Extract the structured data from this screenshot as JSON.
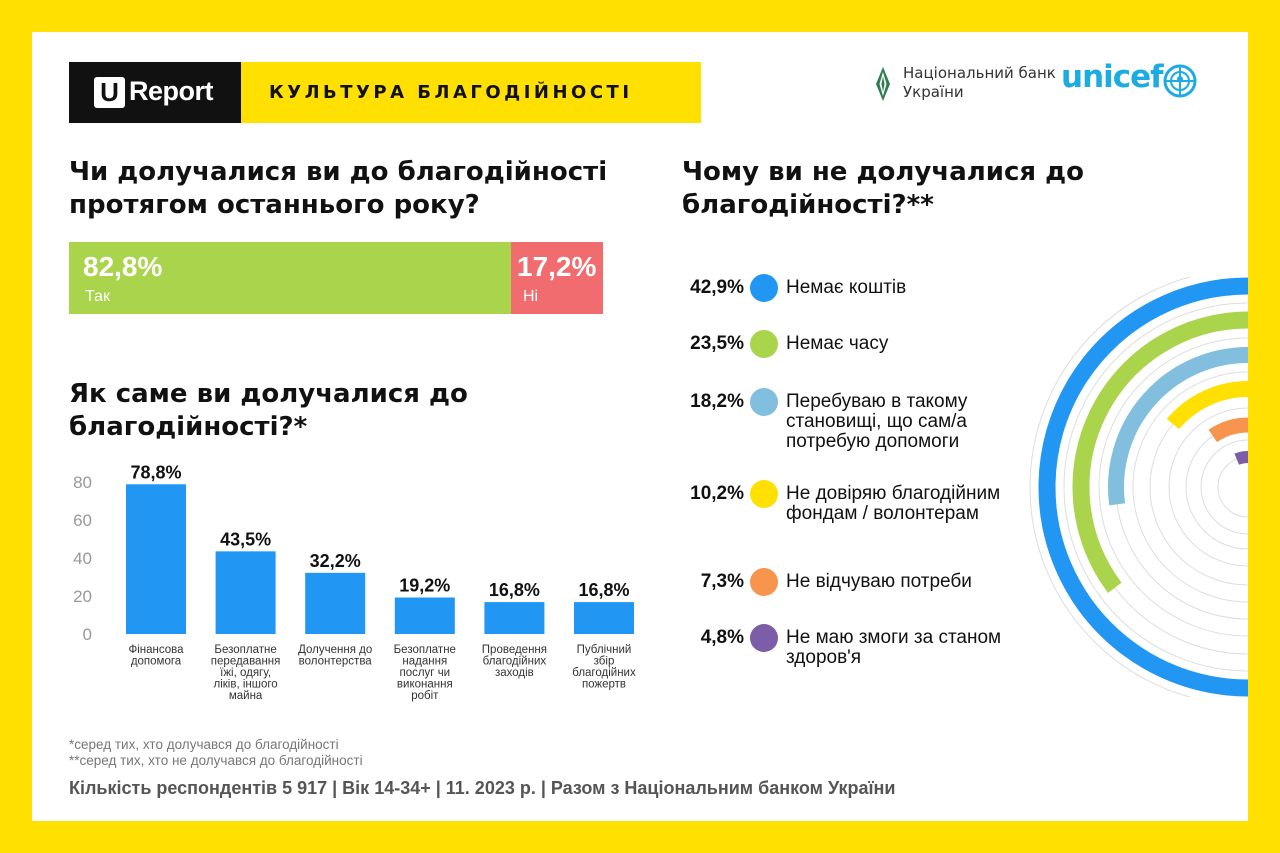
{
  "header": {
    "brand_letter": "U",
    "brand_text": "Report",
    "title": "КУЛЬТУРА БЛАГОДІЙНОСТІ",
    "partner_nbu": "Національний банк України",
    "partner_unicef": "unicef"
  },
  "colors": {
    "yellow": "#FFE000",
    "green": "#A9D44B",
    "red": "#F06C6E",
    "blue": "#2196F3",
    "light_blue": "#82BEDD",
    "orange": "#F7944D",
    "purple": "#7B5EA7"
  },
  "question1": {
    "title": "Чи долучалися ви до благодійності протягом останнього року?",
    "yes_value": "82,8%",
    "yes_label": "Так",
    "no_value": "17,2%",
    "no_label": "Ні"
  },
  "question2": {
    "title": "Як саме ви долучалися до благодійності?*"
  },
  "question3": {
    "title": "Чому ви не долучалися до благодійності?**"
  },
  "chart_data": [
    {
      "type": "bar",
      "title": "Чи долучалися ви до благодійності протягом останнього року?",
      "orientation": "horizontal-stacked",
      "categories": [
        "Так",
        "Ні"
      ],
      "values": [
        82.8,
        17.2
      ],
      "value_labels": [
        "82,8%",
        "17,2%"
      ]
    },
    {
      "type": "bar",
      "title": "Як саме ви долучалися до благодійності?*",
      "categories": [
        "Фінансова допомога",
        "Безоплатне передавання їжі, одягу, ліків, іншого майна",
        "Долучення до волонтерства",
        "Безоплатне надання послуг чи виконання робіт",
        "Проведення благодійних заходів",
        "Публічний збір благодійних пожертв"
      ],
      "category_lines": [
        [
          "Фінансова",
          "допомога"
        ],
        [
          "Безоплатне",
          "передавання",
          "їжі, одягу,",
          "ліків, іншого",
          "майна"
        ],
        [
          "Долучення до",
          "волонтерства"
        ],
        [
          "Безоплатне",
          "надання",
          "послуг чи",
          "виконання",
          "робіт"
        ],
        [
          "Проведення",
          "благодійних",
          "заходів"
        ],
        [
          "Публічний",
          "збір",
          "благодійних",
          "пожертв"
        ]
      ],
      "values": [
        78.8,
        43.5,
        32.2,
        19.2,
        16.8,
        16.8
      ],
      "value_labels": [
        "78,8%",
        "43,5%",
        "32,2%",
        "19,2%",
        "16,8%",
        "16,8%"
      ],
      "y_ticks": [
        0,
        20,
        40,
        60,
        80
      ],
      "ylim": [
        0,
        80
      ],
      "grid": false,
      "color": "#2196F3"
    },
    {
      "type": "bar",
      "subtype": "radial",
      "title": "Чому ви не долучалися до благодійності?**",
      "categories": [
        "Немає коштів",
        "Немає часу",
        "Перебуваю в такому становищі, що сам/а потребую допомоги",
        "Не довіряю благодійним фондам / волонтерам",
        "Не відчуваю потреби",
        "Не маю змоги за станом здоров'я"
      ],
      "values": [
        42.9,
        23.5,
        18.2,
        10.2,
        7.3,
        4.8
      ],
      "value_labels": [
        "42,9%",
        "23,5%",
        "18,2%",
        "10,2%",
        "7,3%",
        "4,8%"
      ],
      "colors": [
        "#2196F3",
        "#A9D44B",
        "#82BEDD",
        "#FFE000",
        "#F7944D",
        "#7B5EA7"
      ]
    }
  ],
  "reasons": [
    {
      "pct": "42,9%",
      "label": "Немає коштів"
    },
    {
      "pct": "23,5%",
      "label": "Немає часу"
    },
    {
      "pct": "18,2%",
      "label": "Перебуваю в такому становищі, що сам/а потребую допомоги"
    },
    {
      "pct": "10,2%",
      "label": "Не довіряю благодійним фондам / волонтерам"
    },
    {
      "pct": "7,3%",
      "label": "Не відчуваю потреби"
    },
    {
      "pct": "4,8%",
      "label": "Не маю змоги за станом здоров'я"
    }
  ],
  "footnotes": {
    "note1": "*серед тих, хто долучався до благодійності",
    "note2": "**серед тих, хто не долучався до благодійності",
    "footer": "Кількість респондентів 5 917 |  Вік 14-34+ | 11. 2023 р. | Разом з Національним банком України"
  }
}
